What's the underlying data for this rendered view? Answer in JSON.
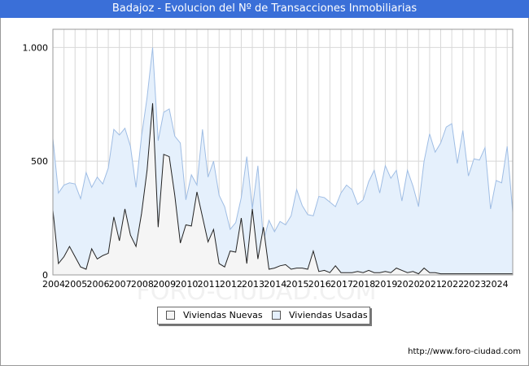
{
  "chart_data": {
    "type": "area",
    "title": "Badajoz - Evolucion del Nº de Transacciones Inmobiliarias",
    "xlabel": "",
    "ylabel": "",
    "ylim": [
      0,
      1080
    ],
    "yticks": [
      {
        "value": 0,
        "label": "0"
      },
      {
        "value": 500,
        "label": "500"
      },
      {
        "value": 1000,
        "label": "1.000"
      }
    ],
    "x_start": 2004,
    "x_tick_labels": [
      "2004",
      "2005",
      "2006",
      "2007",
      "2008",
      "2009",
      "2010",
      "2011",
      "2012",
      "2013",
      "2014",
      "2015",
      "2016",
      "2017",
      "2018",
      "2019",
      "2020",
      "2021",
      "2022",
      "2023",
      "2024"
    ],
    "grid": true,
    "legend_position": "bottom",
    "series": [
      {
        "name": "Viviendas Usadas",
        "color": "#e5f0fc",
        "stroke": "#9fbde4",
        "values": [
          600,
          360,
          395,
          405,
          400,
          335,
          450,
          385,
          430,
          400,
          470,
          640,
          615,
          645,
          565,
          385,
          610,
          780,
          1000,
          590,
          715,
          730,
          610,
          580,
          330,
          440,
          395,
          640,
          430,
          500,
          350,
          300,
          200,
          230,
          340,
          520,
          290,
          480,
          150,
          240,
          190,
          235,
          220,
          260,
          375,
          305,
          265,
          260,
          345,
          340,
          320,
          300,
          360,
          395,
          375,
          310,
          330,
          410,
          460,
          360,
          480,
          425,
          460,
          325,
          460,
          390,
          300,
          500,
          620,
          540,
          580,
          650,
          665,
          490,
          635,
          435,
          510,
          505,
          560,
          290,
          415,
          405,
          565,
          275
        ]
      },
      {
        "name": "Viviendas Nuevas",
        "color": "#f5f5f5",
        "stroke": "#222222",
        "values": [
          285,
          50,
          80,
          125,
          80,
          35,
          25,
          115,
          70,
          85,
          95,
          255,
          150,
          290,
          175,
          125,
          270,
          460,
          755,
          210,
          530,
          520,
          350,
          140,
          220,
          215,
          365,
          255,
          145,
          200,
          50,
          35,
          105,
          100,
          250,
          50,
          290,
          70,
          210,
          25,
          30,
          40,
          45,
          25,
          30,
          30,
          25,
          105,
          15,
          20,
          10,
          40,
          10,
          10,
          10,
          15,
          10,
          20,
          10,
          10,
          15,
          10,
          30,
          20,
          10,
          15,
          5,
          30,
          10,
          10,
          5,
          5,
          5,
          5,
          5,
          5,
          5,
          5,
          5,
          5,
          5,
          5,
          5,
          5
        ]
      }
    ]
  },
  "footer": {
    "credit": "http://www.foro-ciudad.com",
    "watermark": "FORO-CIUDAD.COM"
  }
}
